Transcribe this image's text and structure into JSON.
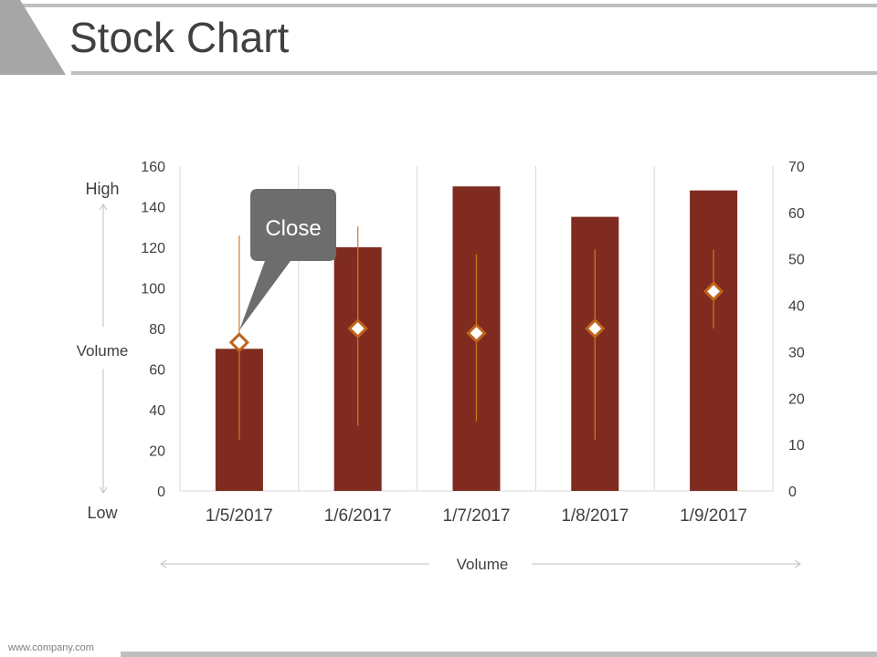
{
  "page": {
    "title": "Stock Chart",
    "footer": "www.company.com"
  },
  "labels": {
    "high": "High",
    "volume_left": "Volume",
    "low": "Low",
    "volume_bottom": "Volume",
    "callout": "Close"
  },
  "colors": {
    "bar": "#7f2b1f",
    "marker_stroke": "#c0631b",
    "whisker": "#d07a24",
    "grid": "#d9d9d9",
    "callout_fill": "#6d6d6d",
    "accent_gray": "#a6a6a6"
  },
  "chart_data": {
    "type": "bar",
    "categories": [
      "1/5/2017",
      "1/6/2017",
      "1/7/2017",
      "1/8/2017",
      "1/9/2017"
    ],
    "volume": [
      70,
      120,
      150,
      135,
      148
    ],
    "high": [
      55,
      57,
      51,
      52,
      52
    ],
    "low": [
      11,
      14,
      15,
      11,
      35
    ],
    "close": [
      32,
      35,
      34,
      35,
      43
    ],
    "ylim_left": [
      0,
      160
    ],
    "yticks_left": [
      0,
      20,
      40,
      60,
      80,
      100,
      120,
      140,
      160
    ],
    "ylim_right": [
      0,
      70
    ],
    "yticks_right": [
      0,
      10,
      20,
      30,
      40,
      50,
      60,
      70
    ],
    "grid": "vertical",
    "legend": "none"
  }
}
